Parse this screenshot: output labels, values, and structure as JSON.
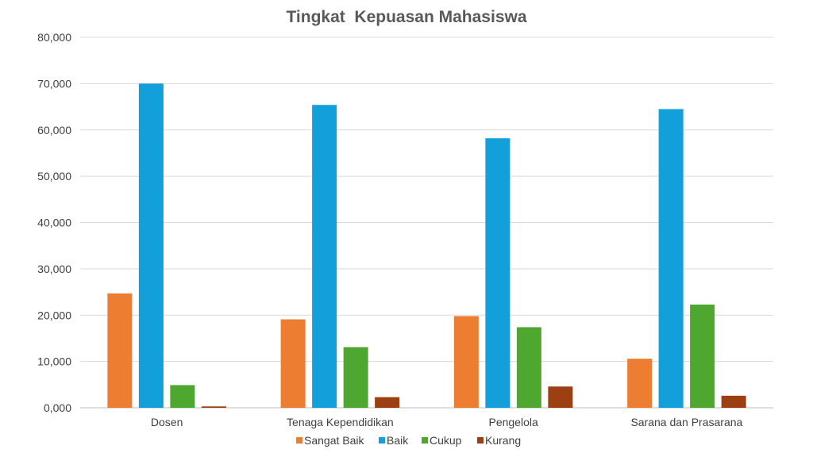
{
  "chart_data": {
    "type": "bar",
    "title": "Tingkat  Kepuasan Mahasiswa",
    "xlabel": "",
    "ylabel": "",
    "categories": [
      "Dosen",
      "Tenaga Kependidikan",
      "Pengelola",
      "Sarana dan Prasarana"
    ],
    "series": [
      {
        "name": "Sangat Baik",
        "color": "#ED7D31",
        "values": [
          24.7,
          19.1,
          19.8,
          10.6
        ]
      },
      {
        "name": "Baik",
        "color": "#129FDA",
        "values": [
          70.0,
          65.4,
          58.2,
          64.5
        ]
      },
      {
        "name": "Cukup",
        "color": "#4EA72E",
        "values": [
          4.9,
          13.1,
          17.4,
          22.3
        ]
      },
      {
        "name": "Kurang",
        "color": "#9C3F12",
        "values": [
          0.3,
          2.3,
          4.6,
          2.6
        ]
      }
    ],
    "ylim": [
      0,
      80
    ],
    "yticks": [
      0,
      10,
      20,
      30,
      40,
      50,
      60,
      70,
      80
    ],
    "ytick_labels": [
      "0,000",
      "10,000",
      "20,000",
      "30,000",
      "40,000",
      "50,000",
      "60,000",
      "70,000",
      "80,000"
    ],
    "grid": true,
    "legend": "bottom"
  }
}
